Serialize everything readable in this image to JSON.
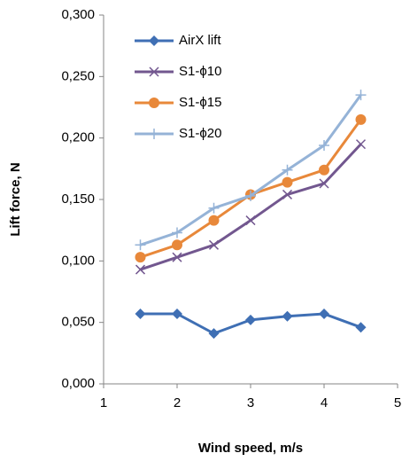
{
  "chart_data": {
    "type": "line",
    "x_label": "Wind speed, m/s",
    "y_label": "Lift force, N",
    "xlim": [
      1,
      5
    ],
    "xticks": [
      1,
      2,
      3,
      4,
      5
    ],
    "ylim": [
      0,
      0.3
    ],
    "yticks": [
      {
        "value": 0,
        "label": "0,000"
      },
      {
        "value": 0.05,
        "label": "0,050"
      },
      {
        "value": 0.1,
        "label": "0,100"
      },
      {
        "value": 0.15,
        "label": "0,150"
      },
      {
        "value": 0.2,
        "label": "0,200"
      },
      {
        "value": 0.25,
        "label": "0,250"
      },
      {
        "value": 0.3,
        "label": "0,300"
      }
    ],
    "grid": false,
    "legend": "upper left",
    "x": [
      1.5,
      2,
      2.5,
      3,
      3.5,
      4,
      4.5
    ],
    "series": [
      {
        "name": "AirX lift",
        "color": "#3f6fb4",
        "marker": "diamond",
        "values": [
          0.057,
          0.057,
          0.041,
          0.052,
          0.055,
          0.057,
          0.046
        ]
      },
      {
        "name": "S1-ϕ10",
        "color": "#72578f",
        "marker": "x",
        "values": [
          0.093,
          0.103,
          0.113,
          0.133,
          0.154,
          0.163,
          0.195
        ]
      },
      {
        "name": "S1-ϕ15",
        "color": "#e8883a",
        "marker": "circle",
        "values": [
          0.103,
          0.113,
          0.133,
          0.154,
          0.164,
          0.174,
          0.215
        ]
      },
      {
        "name": "S1-ϕ20",
        "color": "#95b3d7",
        "marker": "plus",
        "values": [
          0.113,
          0.123,
          0.143,
          0.153,
          0.174,
          0.194,
          0.235
        ]
      }
    ]
  }
}
